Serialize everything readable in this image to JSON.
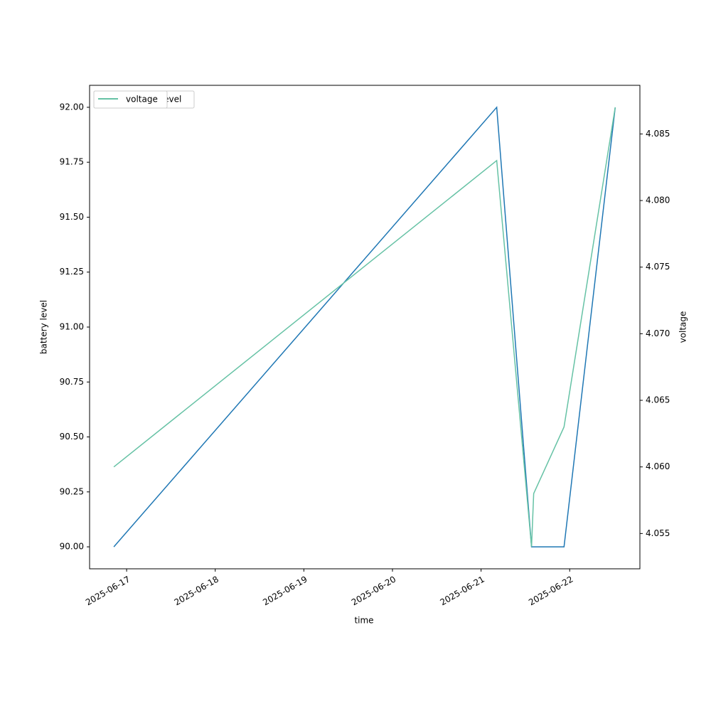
{
  "chart_data": {
    "type": "line",
    "x_label": "time",
    "y_label": "battery level",
    "y2_label": "voltage",
    "x": [
      "2025-06-16T20:32",
      "2025-06-21T04:14",
      "2025-06-21T13:40",
      "2025-06-21T14:15",
      "2025-06-21T22:28",
      "2025-06-22T12:20"
    ],
    "series": [
      {
        "name": "battery_level",
        "color": "#1f77b4",
        "values": [
          90,
          92,
          90,
          90,
          90,
          92
        ]
      },
      {
        "name": "voltage",
        "color": "#66c2a5",
        "axis": "y2",
        "values": [
          4.06,
          4.083,
          4.054,
          4.058,
          4.063,
          4.087
        ]
      }
    ],
    "xlim": [
      "2025-06-16T13:58",
      "2025-06-22T19:01"
    ],
    "xticks": [
      "2025-06-17",
      "2025-06-18",
      "2025-06-19",
      "2025-06-20",
      "2025-06-21",
      "2025-06-22"
    ],
    "ylim": [
      89.9,
      92.1
    ],
    "yticks": [
      {
        "value": 90,
        "label": "90.00"
      },
      {
        "value": 90.25,
        "label": "90.25"
      },
      {
        "value": 90.5,
        "label": "90.50"
      },
      {
        "value": 90.75,
        "label": "90.75"
      },
      {
        "value": 91,
        "label": "91.00"
      },
      {
        "value": 91.25,
        "label": "91.25"
      },
      {
        "value": 91.5,
        "label": "91.50"
      },
      {
        "value": 91.75,
        "label": "91.75"
      },
      {
        "value": 92,
        "label": "92.00"
      }
    ],
    "y2lim": [
      4.05235,
      4.08865
    ],
    "y2ticks": [
      4.055,
      {
        "value": 4.06,
        "label": "4.060"
      },
      4.065,
      {
        "value": 4.07,
        "label": "4.070"
      },
      4.075,
      {
        "value": 4.08,
        "label": "4.080"
      },
      4.085
    ],
    "legend": "upper left",
    "grid": false
  }
}
